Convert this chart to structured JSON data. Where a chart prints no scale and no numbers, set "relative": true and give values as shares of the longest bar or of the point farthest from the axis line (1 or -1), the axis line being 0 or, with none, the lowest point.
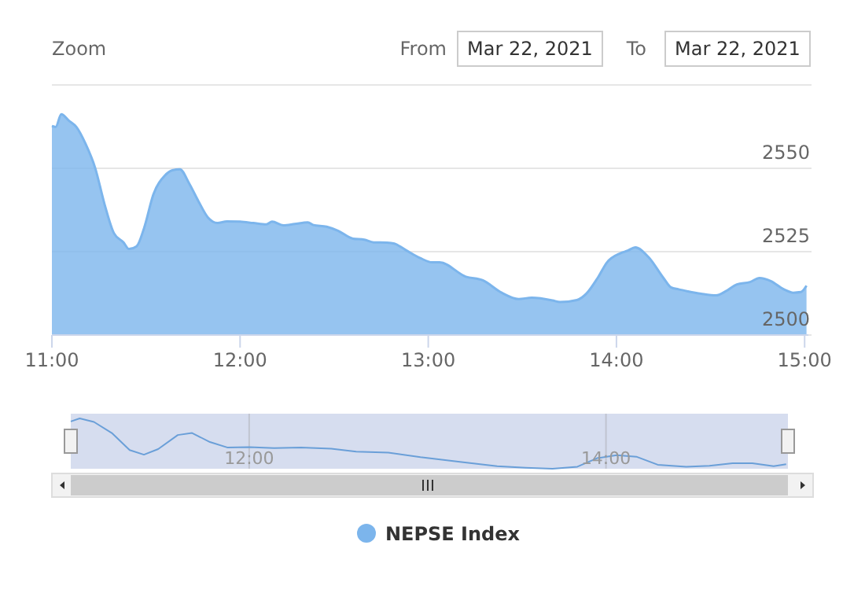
{
  "chart_data": [
    {
      "type": "area",
      "annotations": [
        "Zoom",
        "From",
        "Mar 22, 2021",
        "To",
        "Mar 22, 2021"
      ],
      "x": [
        11.0,
        11.02,
        11.05,
        11.09,
        11.13,
        11.18,
        11.23,
        11.28,
        11.33,
        11.38,
        11.41,
        11.45,
        11.49,
        11.54,
        11.6,
        11.64,
        11.68,
        11.73,
        11.78,
        11.83,
        11.88,
        11.93,
        12.0,
        12.07,
        12.14,
        12.17,
        12.23,
        12.29,
        12.36,
        12.39,
        12.46,
        12.52,
        12.6,
        12.66,
        12.71,
        12.78,
        12.82,
        12.88,
        12.96,
        13.02,
        13.06,
        13.2,
        13.29,
        13.39,
        13.48,
        13.55,
        13.66,
        13.7,
        13.79,
        13.84,
        13.9,
        13.95,
        14.02,
        14.06,
        14.1,
        14.17,
        14.25,
        14.29,
        14.33,
        14.38,
        14.45,
        14.53,
        14.58,
        14.64,
        14.71,
        14.76,
        14.82,
        14.89,
        14.94,
        14.98,
        15.01
      ],
      "series": [
        {
          "name": "NEPSE Index",
          "color": "#7cb5ec",
          "values": [
            2562.7,
            2562.4,
            2566.2,
            2564.3,
            2562.4,
            2557.2,
            2550.1,
            2539.2,
            2530.5,
            2527.8,
            2525.8,
            2526.6,
            2532.1,
            2542.3,
            2547.8,
            2549.4,
            2549.7,
            2545.4,
            2540.0,
            2535.2,
            2533.6,
            2534.1,
            2534.0,
            2533.6,
            2533.2,
            2534.0,
            2532.9,
            2533.3,
            2533.8,
            2533.0,
            2532.5,
            2531.3,
            2528.9,
            2528.6,
            2527.8,
            2527.7,
            2527.4,
            2525.5,
            2523.0,
            2521.8,
            2521.8,
            2517.5,
            2516.4,
            2512.7,
            2510.8,
            2511.2,
            2510.4,
            2509.9,
            2510.5,
            2512.4,
            2517.1,
            2521.8,
            2524.5,
            2525.3,
            2526.3,
            2523.4,
            2517.1,
            2514.3,
            2513.7,
            2513.1,
            2512.4,
            2511.9,
            2513.1,
            2515.2,
            2515.9,
            2517.1,
            2516.2,
            2513.7,
            2512.7,
            2512.9,
            2514.8
          ]
        }
      ],
      "xlim": [
        11,
        15.02
      ],
      "xticks": [
        {
          "value": 11,
          "label": "11:00"
        },
        {
          "value": 12,
          "label": "12:00"
        },
        {
          "value": 13,
          "label": "13:00"
        },
        {
          "value": 14,
          "label": "14:00"
        },
        {
          "value": 15,
          "label": "15:00"
        }
      ],
      "ylim": [
        2500,
        2575
      ],
      "yticks": [
        2500,
        2525,
        2550
      ],
      "grid": "y",
      "legend": "bottom"
    },
    {
      "type": "line",
      "tick_labels": "x",
      "relative": true,
      "x": [
        11.0,
        11.05,
        11.13,
        11.23,
        11.33,
        11.41,
        11.49,
        11.6,
        11.68,
        11.78,
        11.88,
        12.0,
        12.14,
        12.29,
        12.46,
        12.6,
        12.78,
        12.96,
        13.2,
        13.39,
        13.55,
        13.7,
        13.84,
        13.95,
        14.06,
        14.17,
        14.29,
        14.45,
        14.58,
        14.71,
        14.82,
        14.94,
        15.01
      ],
      "series": [
        {
          "color": "#6a9fd8",
          "values": [
            0.94,
            1,
            0.93,
            0.71,
            0.37,
            0.28,
            0.39,
            0.67,
            0.71,
            0.53,
            0.42,
            0.43,
            0.41,
            0.42,
            0.4,
            0.34,
            0.32,
            0.23,
            0.13,
            0.05,
            0.02,
            0,
            0.04,
            0.21,
            0.27,
            0.24,
            0.08,
            0.04,
            0.06,
            0.11,
            0.11,
            0.05,
            0.09
          ]
        }
      ],
      "xlim": [
        11,
        15.02
      ],
      "xticks": [
        {
          "value": 12,
          "label": "12:00"
        },
        {
          "value": 14,
          "label": "14:00"
        }
      ],
      "grid": "x"
    }
  ]
}
